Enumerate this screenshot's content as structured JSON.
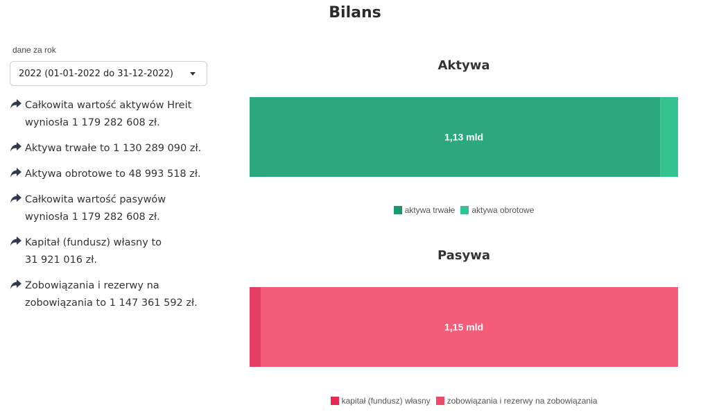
{
  "title": "Bilans",
  "year_select": {
    "label": "dane za rok",
    "value": "2022 (01-01-2022 do 31-12-2022)"
  },
  "facts": [
    "Całkowita wartość aktywów Hreit\n  wyniosła 1 179 282 608 zł.",
    "Aktywa trwałe to 1 130 289 090 zł.",
    "Aktywa obrotowe to 48 993 518 zł.",
    "Całkowita wartość pasywów\n  wyniosła 1 179 282 608 zł.",
    "Kapitał (fundusz) własny to\n    31 921 016 zł.",
    "Zobowiązania i rezerwy na\n    zobowiązania to 1 147 361 592 zł."
  ],
  "chart_data": [
    {
      "type": "bar",
      "stacked": true,
      "orientation": "horizontal",
      "title": "Aktywa",
      "series": [
        {
          "name": "aktywa trwałe",
          "values": [
            1130289090
          ],
          "color": "#2ca87f"
        },
        {
          "name": "aktywa obrotowe",
          "values": [
            48993518
          ],
          "color": "#34c38f"
        }
      ],
      "total": 1179282608,
      "data_label": "1,13 mld",
      "legend_colors": [
        "#199868",
        "#34c38f"
      ],
      "legend_position": "bottom"
    },
    {
      "type": "bar",
      "stacked": true,
      "orientation": "horizontal",
      "title": "Pasywa",
      "series": [
        {
          "name": "kapitał (fundusz) własny",
          "values": [
            31921016
          ],
          "color": "#e63e62"
        },
        {
          "name": "zobowiązania i rezerwy na zobowiązania",
          "values": [
            1147361592
          ],
          "color": "#f45d78"
        }
      ],
      "total": 1179282608,
      "data_label": "1,15 mld",
      "legend_colors": [
        "#e8294f",
        "#f04a6a"
      ],
      "legend_position": "bottom"
    }
  ]
}
